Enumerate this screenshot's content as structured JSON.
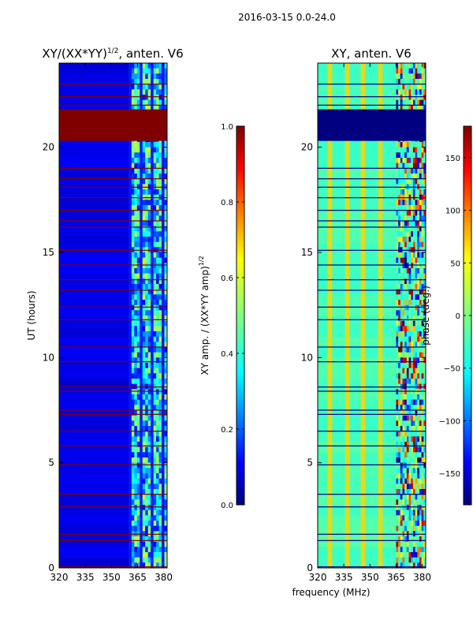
{
  "figure": {
    "suptitle": "2016-03-15 0.0-24.0",
    "shared_xlabel": "frequency (MHz)"
  },
  "chart_data": [
    {
      "type": "heatmap",
      "id": "amp",
      "title": "XY/(XX*YY)",
      "title_exponent": "1/2",
      "title_suffix": ", anten. V6",
      "xlabel": "frequency (MHz)",
      "ylabel": "UT (hours)",
      "xlim": [
        320,
        382
      ],
      "ylim": [
        0,
        24
      ],
      "xticks": [
        "320",
        "335",
        "350",
        "365",
        "380"
      ],
      "xtick_values": [
        320,
        335,
        350,
        365,
        380
      ],
      "yticks": [
        "0",
        "5",
        "10",
        "15",
        "20"
      ],
      "ytick_values": [
        0,
        5,
        10,
        15,
        20
      ],
      "colormap": "jet",
      "colorbar": {
        "label": "XY amp. / (XX*YY amp)",
        "label_exponent": "1/2",
        "range": [
          0.0,
          1.0
        ],
        "ticks": [
          "0.0",
          "0.2",
          "0.4",
          "0.6",
          "0.8",
          "1.0"
        ],
        "tick_values": [
          0.0,
          0.2,
          0.4,
          0.6,
          0.8,
          1.0
        ]
      },
      "background_value": 0.1,
      "active_band_mhz": [
        360,
        382
      ],
      "active_band_value": 0.35,
      "flagged_block_hours": [
        20.3,
        21.8
      ],
      "flagged_value": 1.0,
      "flagged_line_hours": [
        0.05,
        1.3,
        1.6,
        2.9,
        3.5,
        4.9,
        5.8,
        6.5,
        7.3,
        7.5,
        8.4,
        8.6,
        9.8,
        10.5,
        11.8,
        12.4,
        13.2,
        13.7,
        14.4,
        15.1,
        16.2,
        16.5,
        17.0,
        17.6,
        18.1,
        18.5,
        19.0,
        22.0,
        22.4,
        23.0
      ]
    },
    {
      "type": "heatmap",
      "id": "phase",
      "title": "XY, anten. V6",
      "xlabel": "frequency (MHz)",
      "xlim": [
        320,
        382
      ],
      "ylim": [
        0,
        24
      ],
      "xticks": [
        "320",
        "335",
        "350",
        "365",
        "380"
      ],
      "xtick_values": [
        320,
        335,
        350,
        365,
        380
      ],
      "yticks": [
        "0",
        "5",
        "10",
        "15",
        "20"
      ],
      "ytick_values": [
        0,
        5,
        10,
        15,
        20
      ],
      "colormap": "jet",
      "colorbar": {
        "label": "phase (deg.)",
        "range": [
          -180,
          180
        ],
        "ticks": [
          "−150",
          "−100",
          "−50",
          "0",
          "50",
          "100",
          "150"
        ],
        "tick_values": [
          -150,
          -100,
          -50,
          0,
          50,
          100,
          150
        ]
      },
      "background_value": -20,
      "phase_stripes_mhz": [
        327,
        337,
        346,
        356
      ],
      "phase_stripe_value": 60,
      "active_band_mhz": [
        365,
        382
      ],
      "flagged_block_hours": [
        20.3,
        21.8
      ],
      "flagged_value": -180,
      "flagged_line_hours": [
        0.05,
        1.3,
        1.6,
        2.9,
        3.5,
        4.9,
        5.8,
        6.5,
        7.3,
        7.5,
        8.4,
        8.6,
        9.8,
        10.5,
        11.8,
        12.4,
        13.2,
        13.7,
        14.4,
        15.1,
        16.2,
        16.5,
        17.0,
        17.6,
        18.1,
        18.5,
        19.0,
        22.0,
        22.4,
        23.0
      ]
    }
  ]
}
